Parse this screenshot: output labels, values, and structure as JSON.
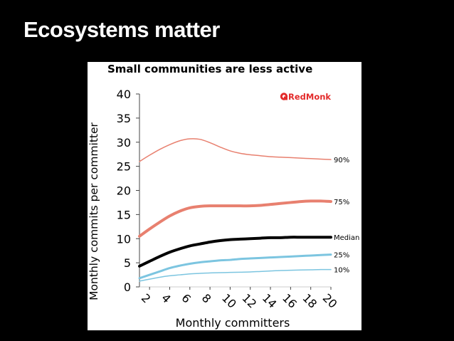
{
  "slide": {
    "title": "Ecosystems matter"
  },
  "brand": {
    "logo_text": "RedMonk",
    "logo_color": "#e32b2b"
  },
  "colors": {
    "p90": "#e8806f",
    "p75": "#e8806f",
    "median": "#000000",
    "p25": "#7cc5e0",
    "p10": "#7cc5e0",
    "axis": "#444444"
  },
  "chart_data": {
    "type": "line",
    "title": "Small communities are less active",
    "xlabel": "Monthly committers",
    "ylabel": "Monthly commits per committer",
    "xlim": [
      1,
      20
    ],
    "ylim": [
      0,
      40
    ],
    "xticks": [
      2,
      4,
      6,
      8,
      10,
      12,
      14,
      16,
      18,
      20
    ],
    "yticks": [
      0,
      5,
      10,
      15,
      20,
      25,
      30,
      35,
      40
    ],
    "grid": false,
    "x": [
      1,
      2,
      3,
      4,
      5,
      6,
      7,
      8,
      9,
      10,
      11,
      12,
      13,
      14,
      15,
      16,
      17,
      18,
      19,
      20
    ],
    "series": [
      {
        "name": "90%",
        "key": "p90",
        "width": 1.5,
        "values": [
          26.0,
          27.3,
          28.5,
          29.5,
          30.3,
          30.7,
          30.6,
          29.9,
          29.0,
          28.2,
          27.7,
          27.4,
          27.2,
          27.0,
          26.9,
          26.8,
          26.7,
          26.6,
          26.5,
          26.4
        ]
      },
      {
        "name": "75%",
        "key": "p75",
        "width": 4,
        "values": [
          10.5,
          12.0,
          13.4,
          14.7,
          15.7,
          16.4,
          16.7,
          16.8,
          16.8,
          16.8,
          16.8,
          16.8,
          16.9,
          17.1,
          17.3,
          17.5,
          17.7,
          17.8,
          17.8,
          17.7
        ]
      },
      {
        "name": "Median",
        "key": "median",
        "width": 4,
        "values": [
          4.3,
          5.3,
          6.3,
          7.2,
          7.9,
          8.5,
          8.9,
          9.3,
          9.6,
          9.8,
          9.9,
          10.0,
          10.1,
          10.2,
          10.2,
          10.3,
          10.3,
          10.3,
          10.3,
          10.3
        ]
      },
      {
        "name": "25%",
        "key": "p25",
        "width": 3,
        "values": [
          1.8,
          2.5,
          3.2,
          3.9,
          4.4,
          4.8,
          5.1,
          5.3,
          5.5,
          5.6,
          5.8,
          5.9,
          6.0,
          6.1,
          6.2,
          6.3,
          6.4,
          6.5,
          6.6,
          6.7
        ]
      },
      {
        "name": "10%",
        "key": "p10",
        "width": 1.5,
        "values": [
          1.2,
          1.6,
          2.0,
          2.3,
          2.5,
          2.7,
          2.8,
          2.9,
          2.95,
          3.0,
          3.05,
          3.1,
          3.2,
          3.3,
          3.4,
          3.45,
          3.5,
          3.55,
          3.6,
          3.6
        ]
      }
    ]
  }
}
